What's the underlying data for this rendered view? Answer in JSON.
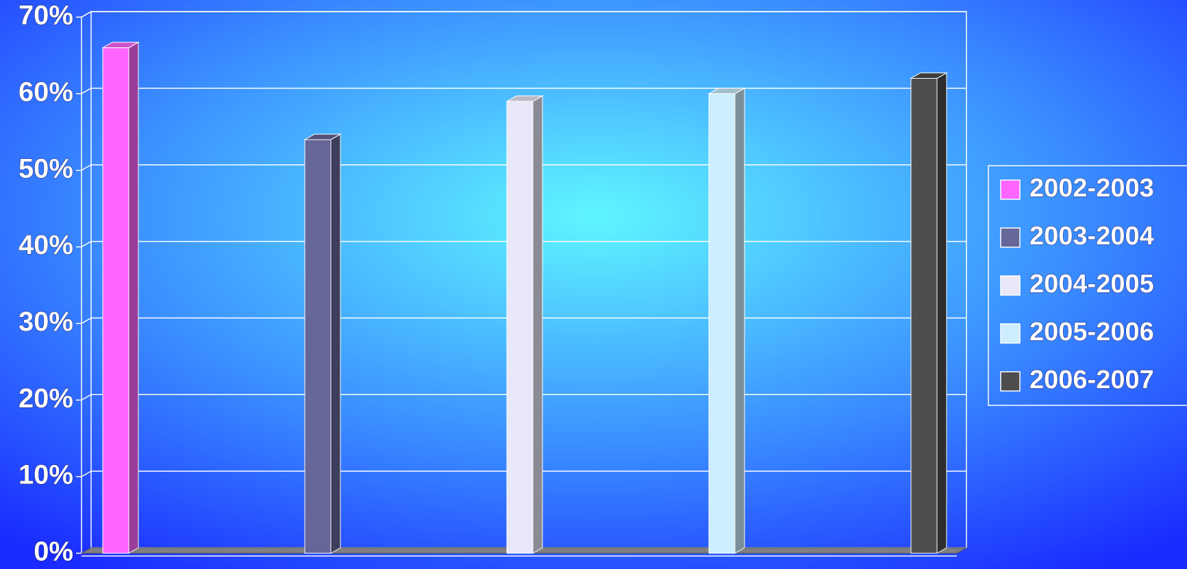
{
  "chart_data": {
    "type": "bar",
    "series": [
      {
        "name": "2002-2003",
        "color": "#ff66ff",
        "values": [
          66
        ]
      },
      {
        "name": "2003-2004",
        "color": "#666699",
        "values": [
          54
        ]
      },
      {
        "name": "2004-2005",
        "color": "#e8e8f8",
        "values": [
          59
        ]
      },
      {
        "name": "2005-2006",
        "color": "#cceeff",
        "values": [
          60
        ]
      },
      {
        "name": "2006-2007",
        "color": "#4d4d4d",
        "values": [
          62
        ]
      }
    ],
    "ylim": [
      0,
      70
    ],
    "yticks": [
      {
        "value": 0,
        "label": "0%"
      },
      {
        "value": 10,
        "label": "10%"
      },
      {
        "value": 20,
        "label": "20%"
      },
      {
        "value": 30,
        "label": "30%"
      },
      {
        "value": 40,
        "label": "40%"
      },
      {
        "value": 50,
        "label": "50%"
      },
      {
        "value": 60,
        "label": "60%"
      },
      {
        "value": 70,
        "label": "70%"
      }
    ],
    "grid": true,
    "legend": "right"
  }
}
